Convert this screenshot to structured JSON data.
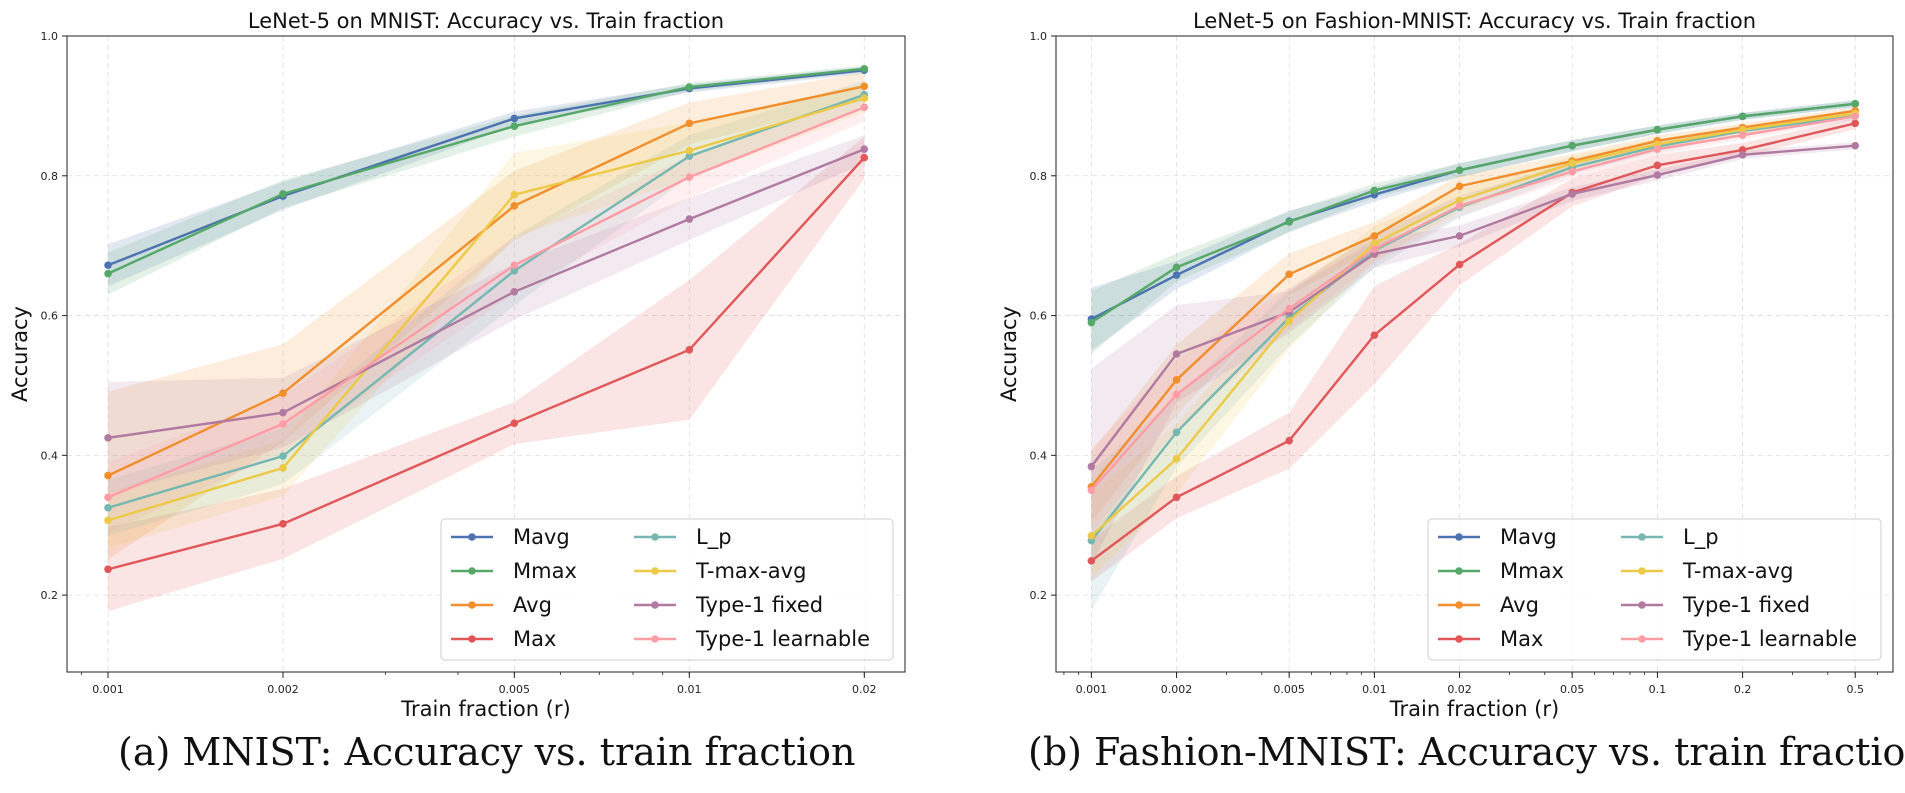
{
  "captions": {
    "a": "(a) MNIST: Accuracy vs. train fraction",
    "b": "(b) Fashion-MNIST: Accuracy vs. train fraction"
  },
  "colors": {
    "Mavg": "#4c72b0",
    "Mmax": "#55a868",
    "Avg": "#f28e2b",
    "Max": "#e15759",
    "L_p": "#76b7b2",
    "T-max-avg": "#edc948",
    "Type-1 fixed": "#b07aa1",
    "Type-1 learnable": "#ff9da7"
  },
  "chart_data": [
    {
      "type": "line",
      "title": "LeNet-5 on MNIST: Accuracy vs. Train fraction",
      "xlabel": "Train fraction (r)",
      "ylabel": "Accuracy",
      "xscale": "log",
      "xlim": [
        0.00085,
        0.0235
      ],
      "ylim": [
        0.09,
        1.0
      ],
      "x": [
        0.001,
        0.002,
        0.005,
        0.01,
        0.02
      ],
      "xtick_labels": [
        "0.001",
        "0.002",
        "0.005",
        "0.01",
        "0.02"
      ],
      "yticks": [
        0.2,
        0.4,
        0.6,
        0.8,
        1.0
      ],
      "ytick_labels": [
        "0.2",
        "0.4",
        "0.6",
        "0.8",
        "1.0"
      ],
      "grid": true,
      "legend": "lower right",
      "series": [
        {
          "name": "Mavg",
          "values": [
            0.672,
            0.771,
            0.882,
            0.925,
            0.951
          ],
          "spread": [
            0.03,
            0.02,
            0.01,
            0.006,
            0.005
          ]
        },
        {
          "name": "Mmax",
          "values": [
            0.66,
            0.774,
            0.871,
            0.927,
            0.953
          ],
          "spread": [
            0.03,
            0.02,
            0.015,
            0.006,
            0.005
          ]
        },
        {
          "name": "Avg",
          "values": [
            0.371,
            0.489,
            0.757,
            0.875,
            0.928
          ],
          "spread": [
            0.12,
            0.07,
            0.05,
            0.03,
            0.02
          ]
        },
        {
          "name": "Max",
          "values": [
            0.237,
            0.302,
            0.446,
            0.551,
            0.826
          ],
          "spread": [
            0.06,
            0.05,
            0.03,
            0.1,
            0.03
          ]
        },
        {
          "name": "L_p",
          "values": [
            0.325,
            0.399,
            0.664,
            0.828,
            0.916
          ],
          "spread": [
            0.04,
            0.04,
            0.05,
            0.03,
            0.02
          ]
        },
        {
          "name": "T-max-avg",
          "values": [
            0.307,
            0.382,
            0.773,
            0.836,
            0.911
          ],
          "spread": [
            0.04,
            0.04,
            0.06,
            0.04,
            0.02
          ]
        },
        {
          "name": "Type-1 fixed",
          "values": [
            0.425,
            0.461,
            0.634,
            0.738,
            0.838
          ],
          "spread": [
            0.08,
            0.05,
            0.04,
            0.03,
            0.02
          ]
        },
        {
          "name": "Type-1 learnable",
          "values": [
            0.34,
            0.445,
            0.672,
            0.798,
            0.898
          ],
          "spread": [
            0.05,
            0.04,
            0.04,
            0.03,
            0.02
          ]
        }
      ]
    },
    {
      "type": "line",
      "title": "LeNet-5 on Fashion-MNIST: Accuracy vs. Train fraction",
      "xlabel": "Train fraction (r)",
      "ylabel": "Accuracy",
      "xscale": "log",
      "xlim": [
        0.00075,
        0.68
      ],
      "ylim": [
        0.09,
        1.0
      ],
      "x": [
        0.001,
        0.002,
        0.005,
        0.01,
        0.02,
        0.05,
        0.1,
        0.2,
        0.5
      ],
      "xtick_labels": [
        "0.001",
        "0.002",
        "0.005",
        "0.01",
        "0.02",
        "0.05",
        "0.1",
        "0.2",
        "0.5"
      ],
      "yticks": [
        0.2,
        0.4,
        0.6,
        0.8,
        1.0
      ],
      "ytick_labels": [
        "0.2",
        "0.4",
        "0.6",
        "0.8",
        "1.0"
      ],
      "grid": true,
      "legend": "lower right",
      "series": [
        {
          "name": "Mavg",
          "values": [
            0.595,
            0.658,
            0.735,
            0.773,
            0.808,
            0.843,
            0.866,
            0.885,
            0.903
          ],
          "spread": [
            0.045,
            0.02,
            0.015,
            0.01,
            0.01,
            0.008,
            0.006,
            0.005,
            0.005
          ]
        },
        {
          "name": "Mmax",
          "values": [
            0.59,
            0.669,
            0.734,
            0.779,
            0.808,
            0.843,
            0.866,
            0.885,
            0.903
          ],
          "spread": [
            0.045,
            0.02,
            0.015,
            0.01,
            0.01,
            0.008,
            0.006,
            0.005,
            0.005
          ]
        },
        {
          "name": "Avg",
          "values": [
            0.355,
            0.508,
            0.659,
            0.714,
            0.785,
            0.821,
            0.85,
            0.869,
            0.893
          ],
          "spread": [
            0.05,
            0.05,
            0.03,
            0.02,
            0.015,
            0.01,
            0.008,
            0.006,
            0.005
          ]
        },
        {
          "name": "Max",
          "values": [
            0.249,
            0.34,
            0.421,
            0.572,
            0.673,
            0.776,
            0.815,
            0.837,
            0.875
          ],
          "spread": [
            0.03,
            0.03,
            0.04,
            0.07,
            0.03,
            0.02,
            0.015,
            0.01,
            0.008
          ]
        },
        {
          "name": "L_p",
          "values": [
            0.278,
            0.433,
            0.597,
            0.693,
            0.755,
            0.812,
            0.842,
            0.864,
            0.886
          ],
          "spread": [
            0.1,
            0.05,
            0.04,
            0.025,
            0.015,
            0.01,
            0.008,
            0.006,
            0.005
          ]
        },
        {
          "name": "T-max-avg",
          "values": [
            0.285,
            0.395,
            0.592,
            0.703,
            0.765,
            0.818,
            0.845,
            0.866,
            0.889
          ],
          "spread": [
            0.06,
            0.05,
            0.04,
            0.025,
            0.015,
            0.01,
            0.008,
            0.006,
            0.005
          ]
        },
        {
          "name": "Type-1 fixed",
          "values": [
            0.384,
            0.545,
            0.605,
            0.688,
            0.714,
            0.774,
            0.801,
            0.83,
            0.843
          ],
          "spread": [
            0.14,
            0.07,
            0.03,
            0.02,
            0.015,
            0.01,
            0.008,
            0.006,
            0.005
          ]
        },
        {
          "name": "Type-1 learnable",
          "values": [
            0.35,
            0.487,
            0.61,
            0.695,
            0.757,
            0.806,
            0.838,
            0.858,
            0.885
          ],
          "spread": [
            0.06,
            0.05,
            0.03,
            0.02,
            0.015,
            0.01,
            0.008,
            0.006,
            0.005
          ]
        }
      ]
    }
  ]
}
